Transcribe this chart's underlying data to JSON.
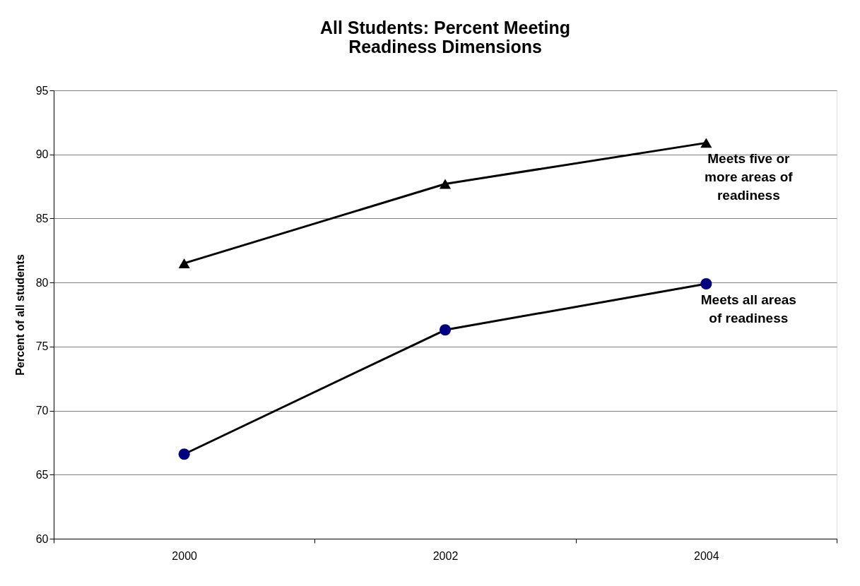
{
  "chart_data": {
    "type": "line",
    "title": [
      "All Students: Percent Meeting",
      "Readiness Dimensions"
    ],
    "ylabel": "Percent of all students",
    "categories": [
      "2000",
      "2002",
      "2004"
    ],
    "series": [
      {
        "name": "Meets five or more areas of readiness",
        "color": "#000000",
        "marker": "triangle",
        "values": [
          81.5,
          87.7,
          90.9
        ]
      },
      {
        "name": "Meets all areas of readiness",
        "color": "#000080",
        "marker": "circle",
        "values": [
          66.6,
          76.3,
          79.9
        ]
      }
    ],
    "ylim": [
      60,
      95
    ],
    "yticks": [
      60,
      65,
      70,
      75,
      80,
      85,
      90,
      95
    ],
    "grid": "y",
    "legend": false,
    "line_style": "solid"
  }
}
